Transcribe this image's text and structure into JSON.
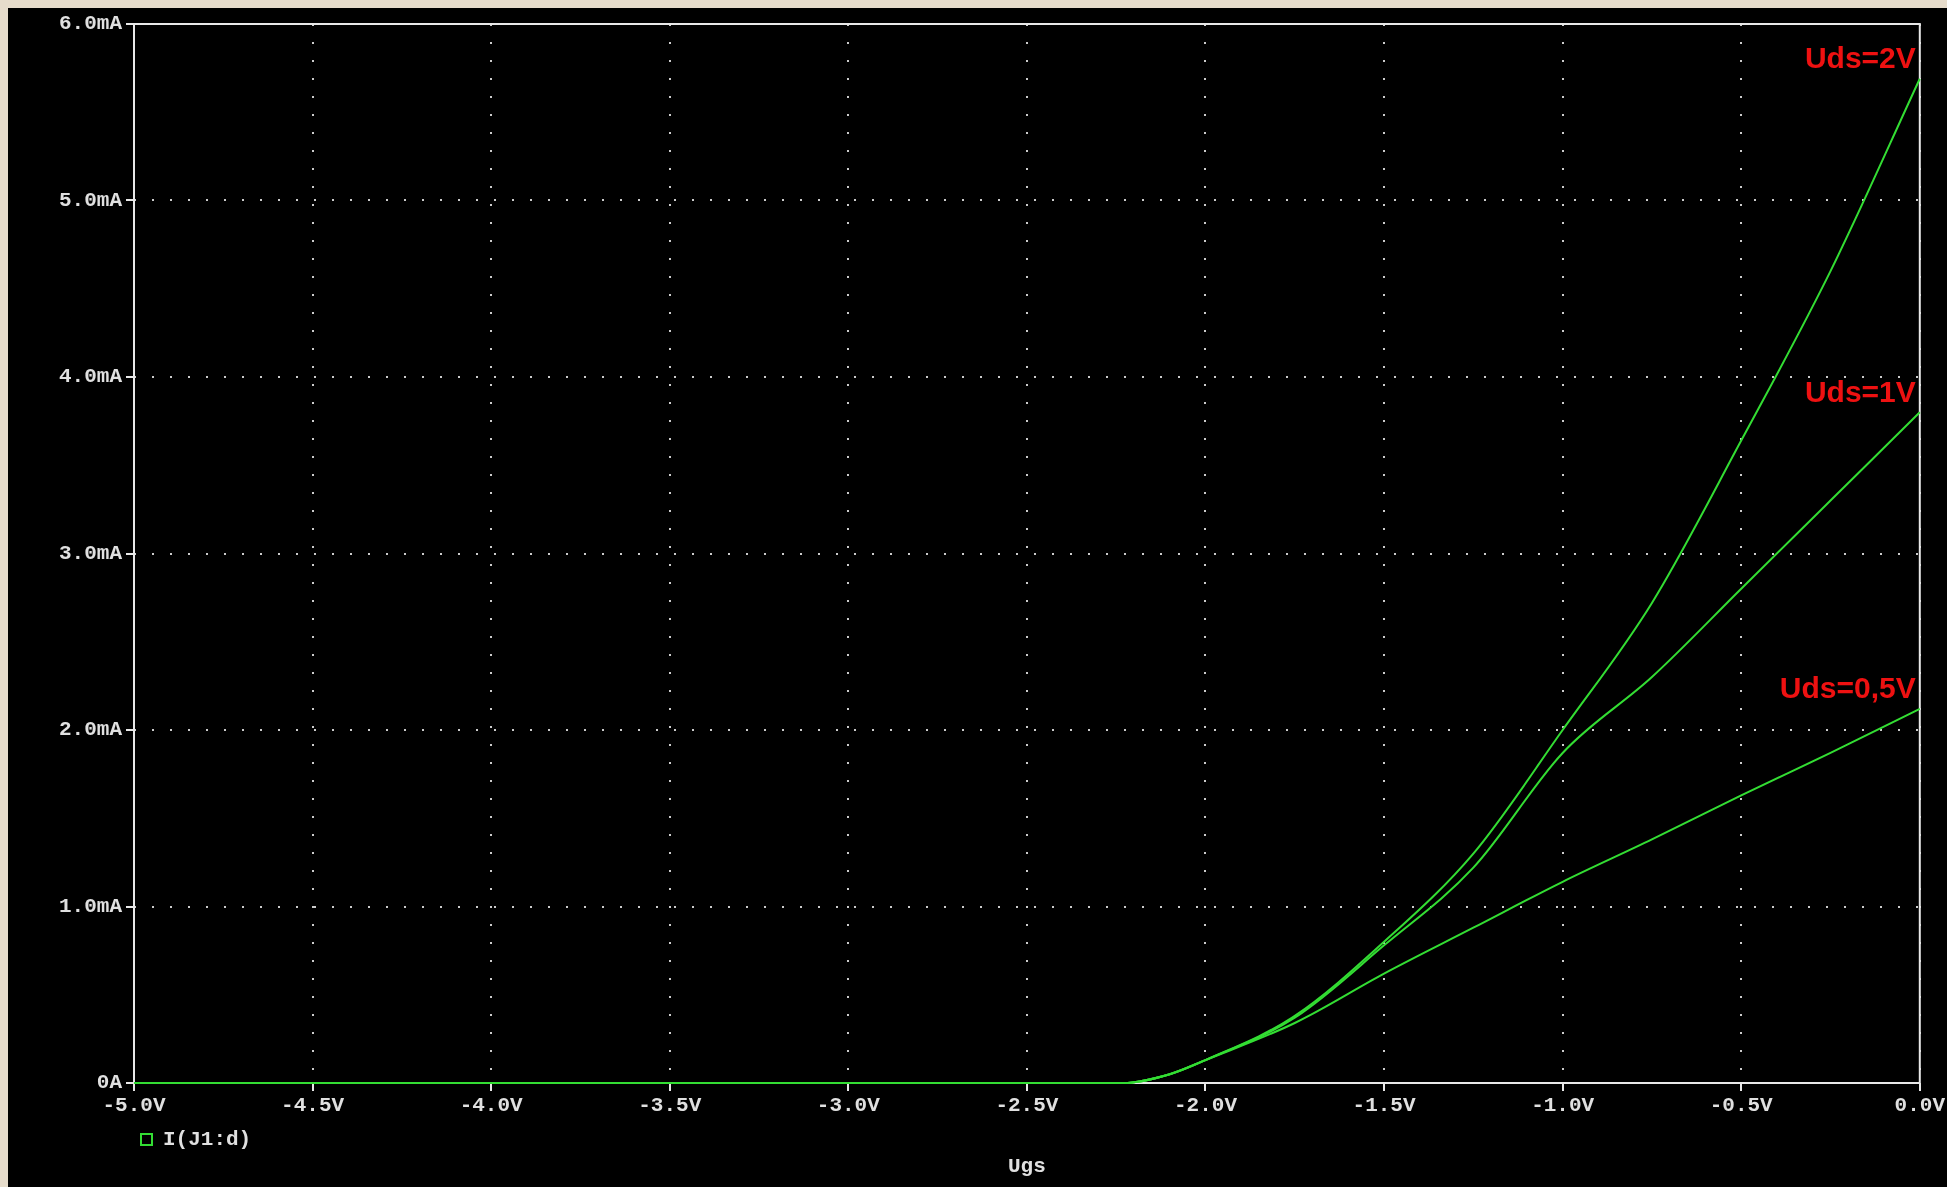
{
  "chart_data": {
    "type": "line",
    "xlabel": "Ugs",
    "annotations": [
      "I(J1:d)"
    ],
    "x": [
      -5,
      -2.23,
      -2.1,
      -2,
      -1.75,
      -1.5,
      -1.25,
      -1,
      -0.75,
      -0.5,
      -0.25,
      0
    ],
    "series": [
      {
        "name": "Uds=2V",
        "color": "#33dd33",
        "values": [
          0,
          0,
          0.05,
          0.13,
          0.38,
          0.8,
          1.3,
          2.0,
          2.72,
          3.64,
          4.6,
          5.69
        ]
      },
      {
        "name": "Uds=1V",
        "color": "#33dd33",
        "values": [
          0,
          0,
          0.05,
          0.13,
          0.37,
          0.78,
          1.22,
          1.87,
          2.3,
          2.8,
          3.3,
          3.8
        ]
      },
      {
        "name": "Uds=0,5V",
        "color": "#33dd33",
        "values": [
          0,
          0,
          0.05,
          0.13,
          0.34,
          0.62,
          0.88,
          1.14,
          1.38,
          1.63,
          1.87,
          2.12
        ]
      }
    ],
    "xlim": [
      -5,
      0
    ],
    "xticks": [
      {
        "value": -5,
        "label": "-5.0V"
      },
      {
        "value": -4.5,
        "label": "-4.5V"
      },
      {
        "value": -4,
        "label": "-4.0V"
      },
      {
        "value": -3.5,
        "label": "-3.5V"
      },
      {
        "value": -3,
        "label": "-3.0V"
      },
      {
        "value": -2.5,
        "label": "-2.5V"
      },
      {
        "value": -2,
        "label": "-2.0V"
      },
      {
        "value": -1.5,
        "label": "-1.5V"
      },
      {
        "value": -1,
        "label": "-1.0V"
      },
      {
        "value": -0.5,
        "label": "-0.5V"
      },
      {
        "value": 0,
        "label": "0.0V"
      }
    ],
    "ylim": [
      0,
      6
    ],
    "yticks": [
      {
        "value": 0,
        "label": "0A"
      },
      {
        "value": 1,
        "label": "1.0mA"
      },
      {
        "value": 2,
        "label": "2.0mA"
      },
      {
        "value": 3,
        "label": "3.0mA"
      },
      {
        "value": 4,
        "label": "4.0mA"
      },
      {
        "value": 5,
        "label": "5.0mA"
      },
      {
        "value": 6,
        "label": "6.0mA"
      }
    ],
    "grid": true,
    "legend": false,
    "marker": "none",
    "line_style": "solid"
  }
}
